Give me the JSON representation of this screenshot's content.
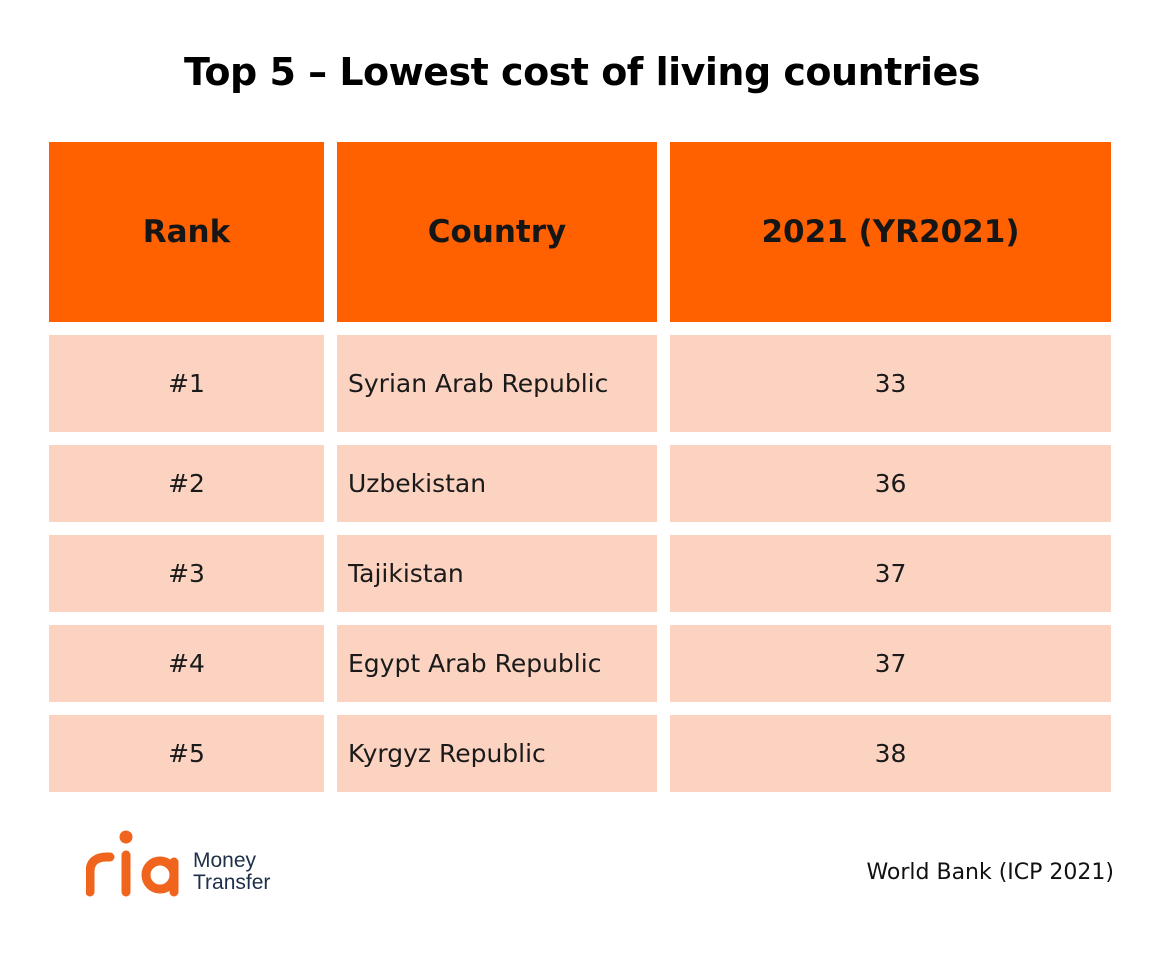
{
  "title": "Top 5 – Lowest cost of living countries",
  "colors": {
    "header_bg": "#ff6000",
    "row_bg": "#fbd3c0",
    "brand_orange": "#f0641e",
    "brand_navy": "#1e2f4a"
  },
  "chart_data": {
    "type": "table",
    "columns": [
      "Rank",
      "Country",
      "2021 (YR2021)"
    ],
    "rows": [
      {
        "rank": "#1",
        "country": "Syrian Arab Republic",
        "value": 33
      },
      {
        "rank": "#2",
        "country": "Uzbekistan",
        "value": 36
      },
      {
        "rank": "#3",
        "country": "Tajikistan",
        "value": 37
      },
      {
        "rank": "#4",
        "country": "Egypt Arab Republic",
        "value": 37
      },
      {
        "rank": "#5",
        "country": "Kyrgyz Republic",
        "value": 38
      }
    ]
  },
  "logo": {
    "mark": "ria",
    "text_line1": "Money",
    "text_line2": "Transfer"
  },
  "source": "World Bank (ICP 2021)"
}
